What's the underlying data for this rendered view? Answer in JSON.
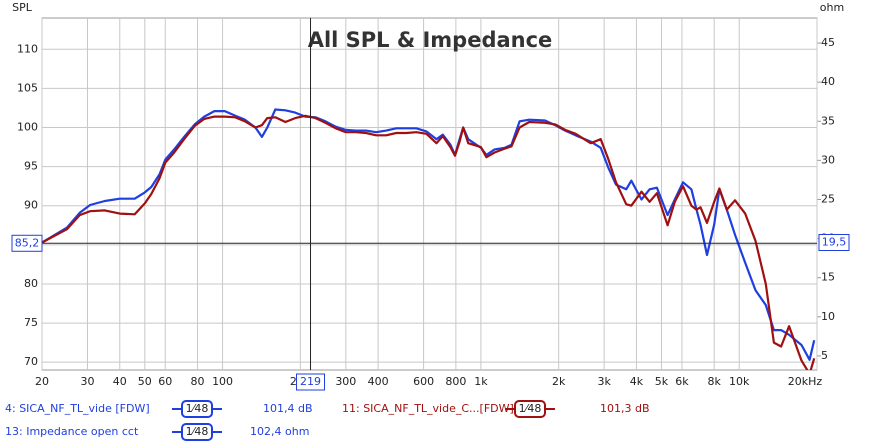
{
  "chart_data": {
    "type": "line",
    "title": "All SPL & Impedance",
    "y_label": "SPL",
    "y2_label": "ohm",
    "log_x": true,
    "grid": true,
    "xlim": [
      20,
      20000
    ],
    "ylim": [
      69,
      114
    ],
    "y2lim": [
      3.2,
      48.2
    ],
    "xticks": [
      20,
      30,
      40,
      50,
      60,
      80,
      100,
      200,
      300,
      400,
      600,
      800,
      {
        "value": 1000,
        "label": "1k"
      },
      {
        "value": 2000,
        "label": "2k"
      },
      {
        "value": 3000,
        "label": "3k"
      },
      {
        "value": 4000,
        "label": "4k"
      },
      {
        "value": 5000,
        "label": "5k"
      },
      {
        "value": 6000,
        "label": "6k"
      },
      {
        "value": 8000,
        "label": "8k"
      },
      {
        "value": 10000,
        "label": "10k"
      },
      {
        "value": 20000,
        "label": "20kHz"
      }
    ],
    "yticks": [
      70,
      75,
      80,
      85,
      90,
      95,
      100,
      105,
      110
    ],
    "y2ticks": [
      5,
      10,
      15,
      20,
      25,
      30,
      35,
      40,
      45
    ],
    "cursor": {
      "x": 219,
      "y": {
        "value": 85.2,
        "label": "85,2"
      },
      "y2": {
        "value": 19.5,
        "label": "19,5"
      }
    },
    "x": [
      20,
      25,
      28,
      30.7,
      35,
      40,
      45.7,
      50,
      53,
      57,
      60,
      65,
      71,
      78,
      85,
      93,
      102,
      112,
      122,
      134,
      142,
      149,
      160,
      175,
      191,
      209,
      229,
      250,
      274,
      300,
      328,
      359,
      393,
      430,
      470,
      514,
      563,
      615,
      673,
      712,
      762,
      794,
      827,
      854,
      893,
      1000,
      1050,
      1130,
      1237,
      1313,
      1412,
      1540,
      1770,
      1940,
      2120,
      2325,
      2660,
      2910,
      3110,
      3335,
      3650,
      3820,
      4185,
      4500,
      4800,
      5280,
      5630,
      6060,
      6530,
      6830,
      7080,
      7500,
      8000,
      8380,
      8950,
      9630,
      10550,
      11560,
      12670,
      13620,
      14520,
      15600,
      17420,
      18720,
      19500
    ],
    "series": [
      {
        "name": "4: SICA_NF_TL_vide [FDW]",
        "color": "#1f3fe0",
        "smoothing": "1⁄48",
        "readout": {
          "value": 101.4,
          "label": "101,4 dB"
        },
        "values": [
          85.3,
          87.2,
          89.1,
          90.1,
          90.6,
          90.9,
          90.9,
          91.7,
          92.4,
          94.0,
          95.9,
          97.2,
          98.8,
          100.4,
          101.4,
          102.1,
          102.1,
          101.5,
          101.0,
          100.0,
          98.8,
          100.0,
          102.3,
          102.2,
          101.9,
          101.4,
          101.3,
          100.8,
          100.1,
          99.7,
          99.6,
          99.6,
          99.4,
          99.6,
          99.9,
          99.9,
          99.9,
          99.5,
          98.5,
          99.1,
          97.8,
          96.5,
          98.5,
          100.0,
          98.5,
          97.4,
          96.5,
          97.2,
          97.4,
          97.8,
          100.8,
          101.0,
          100.9,
          100.3,
          99.6,
          99.0,
          98.2,
          97.4,
          94.9,
          92.7,
          92.1,
          93.2,
          90.8,
          92.1,
          92.3,
          88.8,
          90.8,
          93.0,
          92.1,
          89.5,
          87.6,
          83.7,
          87.6,
          92.1,
          89.5,
          86.3,
          82.7,
          79.2,
          77.3,
          74.1,
          74.1,
          73.5,
          72.2,
          70.3,
          72.8
        ]
      },
      {
        "name": "11: SICA_NF_TL_vide_C...[FDW]",
        "color": "#a01010",
        "smoothing": "1⁄48",
        "readout": {
          "value": 101.3,
          "label": "101,3 dB"
        },
        "values": [
          85.3,
          87.0,
          88.8,
          89.3,
          89.4,
          89.0,
          88.9,
          90.3,
          91.5,
          93.5,
          95.5,
          96.8,
          98.5,
          100.2,
          101.1,
          101.4,
          101.4,
          101.3,
          100.8,
          100.0,
          100.3,
          101.2,
          101.3,
          100.7,
          101.2,
          101.5,
          101.2,
          100.6,
          99.9,
          99.4,
          99.4,
          99.3,
          99.0,
          99.0,
          99.3,
          99.3,
          99.4,
          99.2,
          98.0,
          98.9,
          97.5,
          96.4,
          98.2,
          100.0,
          98.0,
          97.5,
          96.2,
          96.8,
          97.3,
          97.6,
          100.0,
          100.7,
          100.6,
          100.4,
          99.7,
          99.2,
          98.0,
          98.5,
          96.0,
          93.0,
          90.2,
          90.0,
          91.8,
          90.5,
          91.6,
          87.5,
          90.5,
          92.5,
          90.0,
          89.5,
          89.8,
          87.8,
          90.5,
          92.2,
          89.5,
          90.7,
          89.0,
          85.5,
          80.0,
          72.5,
          72.0,
          74.6,
          70.2,
          68.5,
          70.5
        ]
      },
      {
        "name": "13: Impedance open cct",
        "color": "#1f3fe0",
        "axis": "y2",
        "smoothing": "1⁄48",
        "readout": {
          "value": 102.4,
          "label": "102,4 ohm"
        },
        "values": [
          null,
          null,
          null,
          null,
          null,
          null,
          null,
          null,
          null,
          null,
          null,
          null,
          null,
          null,
          null,
          null,
          null,
          null,
          null,
          null,
          null,
          null,
          null,
          null,
          null,
          null,
          null,
          null,
          null,
          null,
          null,
          null,
          null,
          null,
          null,
          null,
          null,
          null,
          null,
          null,
          null,
          null,
          null,
          null,
          null,
          null,
          null,
          null,
          null,
          null,
          null,
          null,
          null,
          null,
          null,
          null,
          null,
          null,
          null,
          null,
          null,
          null,
          null,
          null,
          null,
          null,
          null,
          null,
          null,
          null,
          null,
          null,
          null,
          null,
          null,
          null,
          null,
          null,
          null,
          null,
          null,
          null,
          null,
          null,
          null
        ]
      }
    ]
  }
}
